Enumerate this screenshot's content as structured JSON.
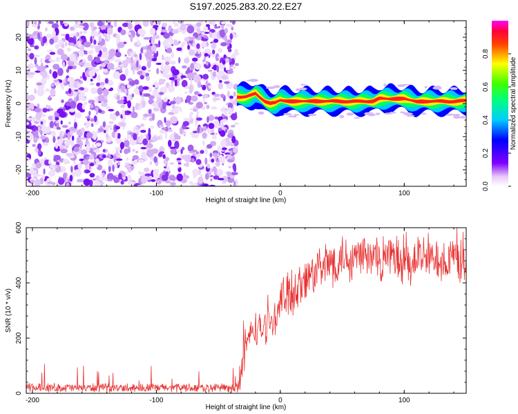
{
  "title": "S197.2025.283.20.22.E27",
  "chart_data": [
    {
      "type": "heatmap",
      "title": "S197.2025.283.20.22.E27",
      "xlabel": "Height of straight line (km)",
      "ylabel": "Frequency (Hz)",
      "xlim": [
        -205,
        150
      ],
      "ylim": [
        -25,
        25
      ],
      "x_ticks": [
        -200,
        -100,
        0,
        100
      ],
      "y_ticks": [
        -20,
        -10,
        0,
        10,
        20
      ],
      "noise_region_x": [
        -205,
        -35
      ],
      "signal_line": {
        "x": [
          -35,
          -28,
          -24,
          -20,
          -16,
          -12,
          -8,
          -4,
          0,
          10,
          20,
          40,
          60,
          75,
          80,
          90,
          100,
          110,
          120,
          135,
          150
        ],
        "freq": [
          2.0,
          2.0,
          2.4,
          3.0,
          1.8,
          0.6,
          0.0,
          0.2,
          1.0,
          0.6,
          0.7,
          0.7,
          0.6,
          0.7,
          1.5,
          1.4,
          1.5,
          0.5,
          0.7,
          0.6,
          0.8
        ]
      },
      "colorbar": {
        "label": "Normalized spectral amplitude",
        "range": [
          0.0,
          1.0
        ],
        "ticks": [
          "0.0",
          "0.2",
          "0.4",
          "0.6",
          "0.8"
        ]
      }
    },
    {
      "type": "line",
      "xlabel": "Height of straight line (km)",
      "ylabel": "SNR (10 * v/v)",
      "xlim": [
        -205,
        150
      ],
      "ylim": [
        0,
        600
      ],
      "x_ticks": [
        -200,
        -100,
        0,
        100
      ],
      "y_ticks": [
        0,
        200,
        400,
        600
      ],
      "series": [
        {
          "name": "SNR",
          "color": "#e83232",
          "x": [
            -205,
            -40,
            -34,
            -30,
            -26,
            -22,
            -18,
            -14,
            -10,
            -5,
            0,
            5,
            10,
            20,
            30,
            40,
            50,
            60,
            80,
            100,
            120,
            140,
            150
          ],
          "values": [
            20,
            20,
            25,
            120,
            200,
            230,
            230,
            235,
            250,
            270,
            320,
            360,
            370,
            410,
            440,
            470,
            490,
            500,
            495,
            480,
            490,
            485,
            490
          ]
        }
      ]
    }
  ]
}
